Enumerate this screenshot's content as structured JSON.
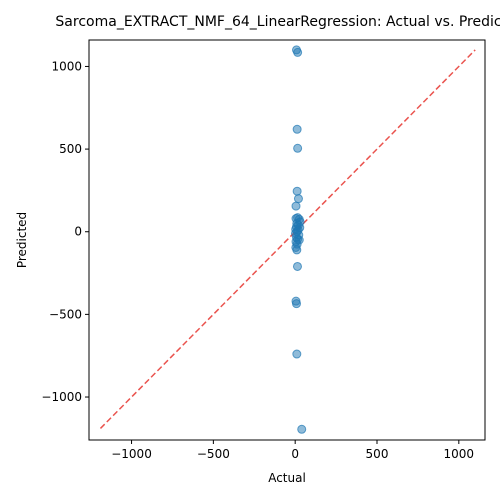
{
  "chart_data": {
    "type": "scatter",
    "title": "Sarcoma_EXTRACT_NMF_64_LinearRegression: Actual vs. Predicted",
    "xlabel": "Actual",
    "ylabel": "Predicted",
    "xlim": [
      -1260,
      1160
    ],
    "ylim": [
      -1260,
      1160
    ],
    "xticks": [
      -1000,
      -500,
      0,
      500,
      1000
    ],
    "yticks": [
      -1000,
      -500,
      0,
      500,
      1000
    ],
    "grid": false,
    "point_color": "#1f77b4",
    "reference_line": {
      "from": [
        -1190,
        -1190
      ],
      "to": [
        1100,
        1100
      ],
      "color": "#e8413b",
      "style": "dashed"
    },
    "points": [
      {
        "x": 8,
        "y": 1100
      },
      {
        "x": 15,
        "y": 1085
      },
      {
        "x": 12,
        "y": 620
      },
      {
        "x": 15,
        "y": 505
      },
      {
        "x": 12,
        "y": 245
      },
      {
        "x": 20,
        "y": 200
      },
      {
        "x": 5,
        "y": 155
      },
      {
        "x": 5,
        "y": 80
      },
      {
        "x": 15,
        "y": 85
      },
      {
        "x": 25,
        "y": 75
      },
      {
        "x": 30,
        "y": 60
      },
      {
        "x": 10,
        "y": 50
      },
      {
        "x": 20,
        "y": 40
      },
      {
        "x": 8,
        "y": 30
      },
      {
        "x": 28,
        "y": 25
      },
      {
        "x": 3,
        "y": 15
      },
      {
        "x": 18,
        "y": 10
      },
      {
        "x": 12,
        "y": 0
      },
      {
        "x": 2,
        "y": -10
      },
      {
        "x": 22,
        "y": -20
      },
      {
        "x": 8,
        "y": -35
      },
      {
        "x": 15,
        "y": -45
      },
      {
        "x": 25,
        "y": -50
      },
      {
        "x": 5,
        "y": -60
      },
      {
        "x": 12,
        "y": -75
      },
      {
        "x": 4,
        "y": -95
      },
      {
        "x": 10,
        "y": -110
      },
      {
        "x": 14,
        "y": -210
      },
      {
        "x": 5,
        "y": -420
      },
      {
        "x": 8,
        "y": -435
      },
      {
        "x": 10,
        "y": -740
      },
      {
        "x": 40,
        "y": -1195
      }
    ]
  }
}
